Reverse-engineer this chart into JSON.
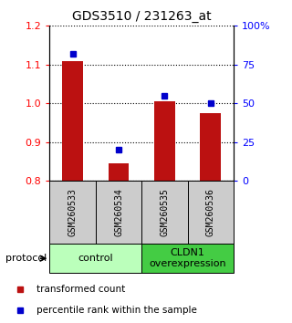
{
  "title": "GDS3510 / 231263_at",
  "samples": [
    "GSM260533",
    "GSM260534",
    "GSM260535",
    "GSM260536"
  ],
  "transformed_counts": [
    1.11,
    0.845,
    1.005,
    0.975
  ],
  "percentile_ranks": [
    82,
    20,
    55,
    50
  ],
  "ylim_left": [
    0.8,
    1.2
  ],
  "ylim_right": [
    0,
    100
  ],
  "yticks_left": [
    0.8,
    0.9,
    1.0,
    1.1,
    1.2
  ],
  "yticks_right": [
    0,
    25,
    50,
    75,
    100
  ],
  "ytick_labels_right": [
    "0",
    "25",
    "50",
    "75",
    "100%"
  ],
  "bar_color": "#bb1111",
  "dot_color": "#0000cc",
  "groups": [
    {
      "label": "control",
      "samples": [
        0,
        1
      ],
      "color": "#bbffbb"
    },
    {
      "label": "CLDN1\noverexpression",
      "samples": [
        2,
        3
      ],
      "color": "#44cc44"
    }
  ],
  "protocol_label": "protocol",
  "legend_bar_label": "transformed count",
  "legend_dot_label": "percentile rank within the sample",
  "sample_box_color": "#cccccc",
  "bar_width": 0.45
}
